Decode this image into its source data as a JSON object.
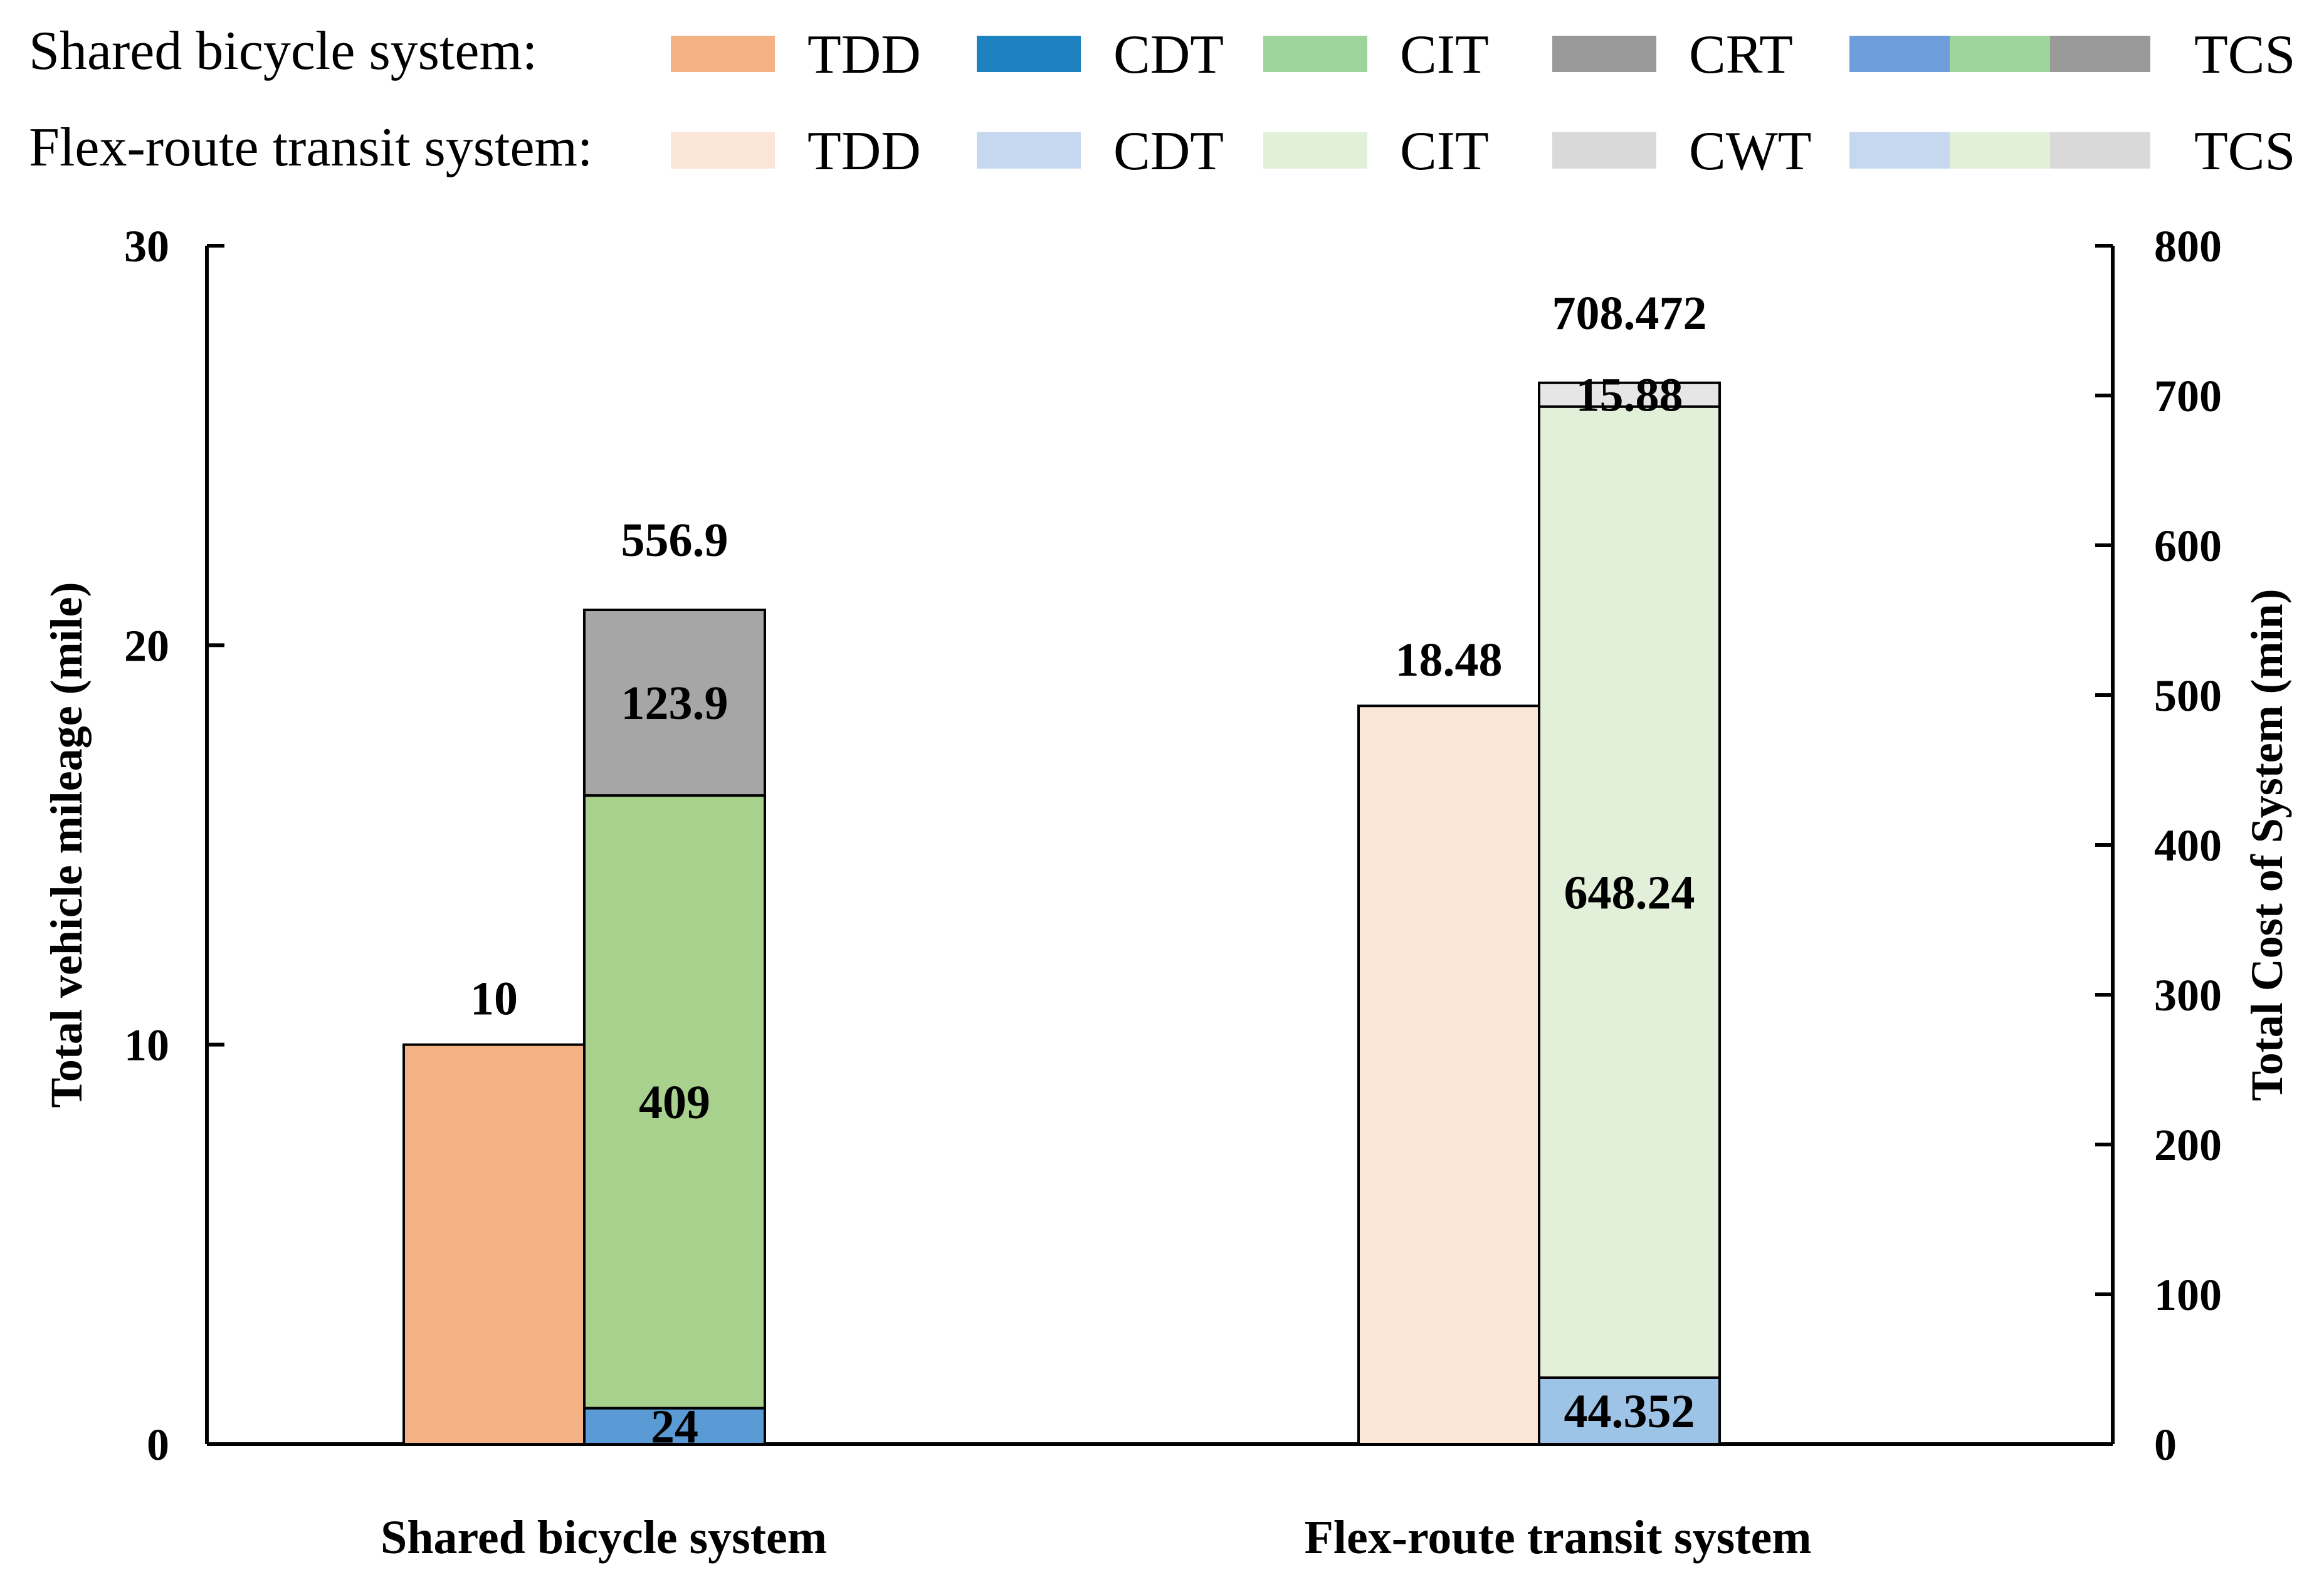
{
  "chart_data": {
    "type": "bar",
    "categories": [
      "Shared bicycle system",
      "Flex-route transit system"
    ],
    "y_left": {
      "label": "Total vehicle mileage (mile)",
      "range": [
        0,
        30
      ],
      "ticks": [
        0,
        10,
        20,
        30
      ]
    },
    "y_right": {
      "label": "Total Cost of System (min)",
      "range": [
        0,
        800
      ],
      "ticks": [
        0,
        100,
        200,
        300,
        400,
        500,
        600,
        700,
        800
      ]
    },
    "grid": false,
    "legend_position": "top",
    "legend": [
      {
        "title": "Shared bicycle system:",
        "entries": [
          {
            "label": "TDD",
            "colors": [
              "#F4B183"
            ]
          },
          {
            "label": "CDT",
            "colors": [
              "#1F82C0"
            ]
          },
          {
            "label": "CIT",
            "colors": [
              "#9DD49A"
            ]
          },
          {
            "label": "CRT",
            "colors": [
              "#999999"
            ]
          },
          {
            "label": "TCS",
            "colors": [
              "#6D9EDB",
              "#9DD49A",
              "#999999"
            ]
          }
        ]
      },
      {
        "title": "Flex-route transit system:",
        "entries": [
          {
            "label": "TDD",
            "colors": [
              "#FBE5D6"
            ]
          },
          {
            "label": "CDT",
            "colors": [
              "#C5D8F0"
            ]
          },
          {
            "label": "CIT",
            "colors": [
              "#E2F0D9"
            ]
          },
          {
            "label": "CWT",
            "colors": [
              "#D9D9D9"
            ]
          },
          {
            "label": "TCS",
            "colors": [
              "#C5D8F0",
              "#E2F0D9",
              "#D9D9D9"
            ]
          }
        ]
      }
    ],
    "groups": [
      {
        "category": "Shared bicycle system",
        "tdd": {
          "value": 10,
          "label": "10",
          "color": "#F4B183"
        },
        "tcs": {
          "total_label": "556.9",
          "segments": [
            {
              "name": "CDT",
              "value": 24,
              "label": "24",
              "color": "#5B9BD5"
            },
            {
              "name": "CIT",
              "value": 409,
              "label": "409",
              "color": "#A9D18E"
            },
            {
              "name": "CRT",
              "value": 123.9,
              "label": "123.9",
              "color": "#A6A6A6"
            }
          ]
        }
      },
      {
        "category": "Flex-route transit system",
        "tdd": {
          "value": 18.48,
          "label": "18.48",
          "color": "#FBE5D6"
        },
        "tcs": {
          "total_label": "708.472",
          "segments": [
            {
              "name": "CDT",
              "value": 44.352,
              "label": "44.352",
              "color": "#9DC3E6"
            },
            {
              "name": "CIT",
              "value": 648.24,
              "label": "648.24",
              "color": "#E2F0D9"
            },
            {
              "name": "CWT",
              "value": 15.88,
              "label": "15.88",
              "color": "#E7E6E6"
            }
          ]
        }
      }
    ]
  }
}
